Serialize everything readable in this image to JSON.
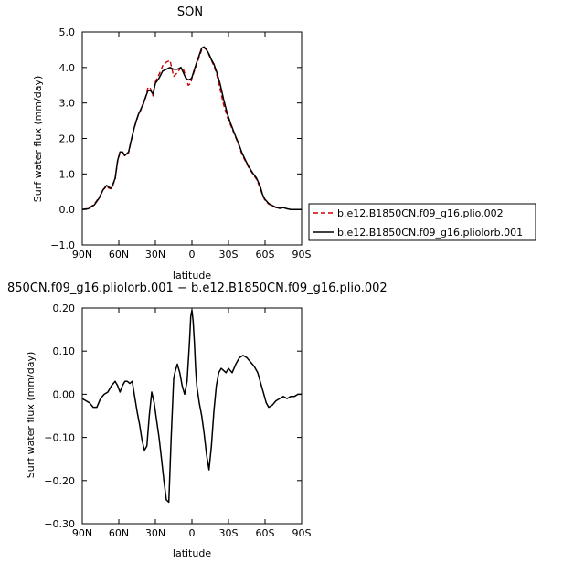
{
  "chart_data": [
    {
      "type": "line",
      "title": "SON",
      "xlabel": "latitude",
      "ylabel": "Surf water flux (mm/day)",
      "xlim": [
        90,
        -90
      ],
      "ylim": [
        -1.0,
        5.0
      ],
      "x_ticks": [
        90,
        60,
        30,
        0,
        -30,
        -60,
        -90
      ],
      "x_tick_labels": [
        "90N",
        "60N",
        "30N",
        "0",
        "30S",
        "60S",
        "90S"
      ],
      "y_ticks": [
        -1.0,
        0.0,
        1.0,
        2.0,
        3.0,
        4.0,
        5.0
      ],
      "y_tick_labels": [
        "−1.0",
        "0.0",
        "1.0",
        "2.0",
        "3.0",
        "4.0",
        "5.0"
      ],
      "legend": "right",
      "series": [
        {
          "name": "b.e12.B1850CN.f09_g16.plio.002",
          "color": "#cc0000",
          "style": "dashed",
          "x": [
            90,
            85,
            80,
            76,
            73,
            70,
            68,
            66,
            63,
            61,
            59,
            57,
            55,
            52,
            50,
            48,
            46,
            44,
            42,
            40,
            38,
            36,
            34,
            32,
            30,
            27,
            24,
            21,
            18,
            15,
            12,
            9,
            7,
            5,
            3,
            1,
            0,
            -2,
            -4,
            -6,
            -8,
            -10,
            -12,
            -14,
            -16,
            -18,
            -20,
            -23,
            -26,
            -29,
            -32,
            -35,
            -38,
            -41,
            -44,
            -47,
            -50,
            -53,
            -56,
            -58,
            -60,
            -63,
            -66,
            -69,
            -72,
            -75,
            -78,
            -81,
            -84,
            -87,
            -90
          ],
          "y": [
            0.0,
            0.03,
            0.15,
            0.35,
            0.55,
            0.65,
            0.6,
            0.58,
            0.85,
            1.35,
            1.6,
            1.6,
            1.5,
            1.6,
            1.9,
            2.2,
            2.45,
            2.65,
            2.8,
            2.95,
            3.15,
            3.45,
            3.4,
            3.2,
            3.6,
            3.8,
            4.05,
            4.15,
            4.2,
            3.75,
            3.85,
            4.0,
            3.95,
            3.75,
            3.5,
            3.55,
            3.7,
            3.9,
            4.1,
            4.3,
            4.5,
            4.55,
            4.5,
            4.35,
            4.2,
            4.05,
            3.85,
            3.4,
            2.95,
            2.6,
            2.35,
            2.1,
            1.85,
            1.55,
            1.35,
            1.15,
            1.0,
            0.85,
            0.6,
            0.4,
            0.25,
            0.15,
            0.1,
            0.05,
            0.03,
            0.05,
            0.02,
            0.0,
            0.0,
            0.0,
            0.0
          ]
        },
        {
          "name": "b.e12.B1850CN.f09_g16.pliolorb.001",
          "color": "#000000",
          "style": "solid",
          "x": [
            90,
            85,
            80,
            76,
            73,
            70,
            68,
            66,
            63,
            61,
            59,
            57,
            55,
            52,
            50,
            48,
            46,
            44,
            42,
            40,
            38,
            36,
            34,
            32,
            30,
            27,
            24,
            21,
            18,
            15,
            12,
            9,
            7,
            5,
            3,
            1,
            0,
            -2,
            -4,
            -6,
            -8,
            -10,
            -12,
            -14,
            -16,
            -18,
            -20,
            -23,
            -26,
            -29,
            -32,
            -35,
            -38,
            -41,
            -44,
            -47,
            -50,
            -53,
            -56,
            -58,
            -60,
            -63,
            -66,
            -69,
            -72,
            -75,
            -78,
            -81,
            -84,
            -87,
            -90
          ],
          "y": [
            0.0,
            0.02,
            0.13,
            0.33,
            0.55,
            0.68,
            0.62,
            0.6,
            0.88,
            1.38,
            1.62,
            1.62,
            1.52,
            1.62,
            1.92,
            2.22,
            2.47,
            2.67,
            2.82,
            2.98,
            3.17,
            3.35,
            3.35,
            3.25,
            3.55,
            3.7,
            3.9,
            3.95,
            4.0,
            3.95,
            3.95,
            4.0,
            3.85,
            3.7,
            3.65,
            3.68,
            3.72,
            3.95,
            4.15,
            4.35,
            4.55,
            4.58,
            4.5,
            4.38,
            4.22,
            4.1,
            3.9,
            3.55,
            3.1,
            2.7,
            2.4,
            2.13,
            1.88,
            1.6,
            1.38,
            1.18,
            1.02,
            0.88,
            0.65,
            0.42,
            0.28,
            0.17,
            0.11,
            0.06,
            0.03,
            0.05,
            0.02,
            0.0,
            0.0,
            0.0,
            0.0
          ]
        }
      ]
    },
    {
      "type": "line",
      "title": "850CN.f09_g16.pliolorb.001 − b.e12.B1850CN.f09_g16.plio.002",
      "xlabel": "latitude",
      "ylabel": "Surf water flux (mm/day)",
      "xlim": [
        90,
        -90
      ],
      "ylim": [
        -0.3,
        0.2
      ],
      "x_ticks": [
        90,
        60,
        30,
        0,
        -30,
        -60,
        -90
      ],
      "x_tick_labels": [
        "90N",
        "60N",
        "30N",
        "0",
        "30S",
        "60S",
        "90S"
      ],
      "y_ticks": [
        -0.3,
        -0.2,
        -0.1,
        0.0,
        0.1,
        0.2
      ],
      "y_tick_labels": [
        "−0.30",
        "−0.20",
        "−0.10",
        "0.00",
        "0.10",
        "0.20"
      ],
      "series": [
        {
          "color": "#000000",
          "style": "solid",
          "x": [
            90,
            87,
            84,
            81,
            78,
            75,
            72,
            69,
            66,
            63,
            61,
            59,
            57,
            55,
            53,
            51,
            49,
            47,
            45,
            43,
            41,
            39,
            37,
            35,
            33,
            31,
            29,
            27,
            25,
            23,
            21,
            19,
            17,
            15,
            14,
            12,
            10,
            8,
            6,
            4,
            2,
            1,
            0,
            -1,
            -2,
            -3,
            -4,
            -6,
            -8,
            -10,
            -12,
            -14,
            -16,
            -18,
            -20,
            -22,
            -24,
            -26,
            -28,
            -30,
            -33,
            -36,
            -39,
            -42,
            -45,
            -48,
            -51,
            -54,
            -57,
            -59,
            -61,
            -63,
            -66,
            -69,
            -72,
            -75,
            -78,
            -81,
            -84,
            -87,
            -90
          ],
          "y": [
            -0.01,
            -0.015,
            -0.02,
            -0.03,
            -0.03,
            -0.01,
            0.0,
            0.005,
            0.02,
            0.03,
            0.02,
            0.005,
            0.02,
            0.03,
            0.03,
            0.025,
            0.03,
            -0.005,
            -0.04,
            -0.07,
            -0.105,
            -0.13,
            -0.12,
            -0.05,
            0.005,
            -0.02,
            -0.06,
            -0.1,
            -0.15,
            -0.2,
            -0.245,
            -0.25,
            -0.1,
            0.035,
            0.05,
            0.07,
            0.05,
            0.02,
            0.0,
            0.03,
            0.12,
            0.18,
            0.195,
            0.17,
            0.12,
            0.06,
            0.02,
            -0.02,
            -0.05,
            -0.09,
            -0.14,
            -0.175,
            -0.12,
            -0.04,
            0.02,
            0.05,
            0.06,
            0.055,
            0.05,
            0.06,
            0.05,
            0.07,
            0.085,
            0.09,
            0.085,
            0.075,
            0.065,
            0.05,
            0.02,
            0.0,
            -0.02,
            -0.03,
            -0.025,
            -0.015,
            -0.01,
            -0.005,
            -0.01,
            -0.005,
            -0.005,
            0.0,
            0.0
          ]
        }
      ]
    }
  ]
}
